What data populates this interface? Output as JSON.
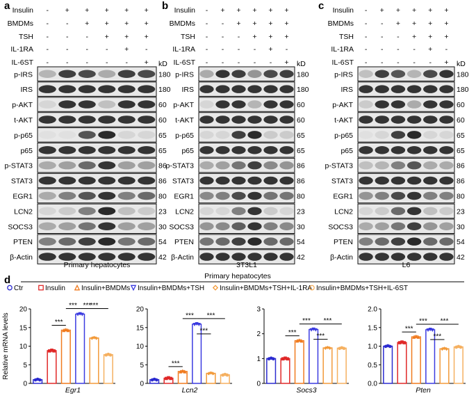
{
  "panels": [
    {
      "letter": "a",
      "caption": "Primary hepatocytes",
      "conditions": [
        {
          "label": "Insulin",
          "signs": [
            "-",
            "+",
            "+",
            "+",
            "+",
            "+"
          ]
        },
        {
          "label": "BMDMs",
          "signs": [
            "-",
            "-",
            "+",
            "+",
            "+",
            "+"
          ]
        },
        {
          "label": "TSH",
          "signs": [
            "-",
            "-",
            "-",
            "+",
            "+",
            "+"
          ]
        },
        {
          "label": "IL-1RA",
          "signs": [
            "-",
            "-",
            "-",
            "-",
            "+",
            "-"
          ]
        },
        {
          "label": "IL-6ST",
          "signs": [
            "-",
            "-",
            "-",
            "-",
            "-",
            "+"
          ]
        }
      ],
      "kd_label": "kD",
      "blots": [
        {
          "label": "p-IRS",
          "kd": "180",
          "intensity": [
            0.25,
            0.8,
            0.75,
            0.3,
            0.8,
            0.75
          ]
        },
        {
          "label": "IRS",
          "kd": "180",
          "intensity": [
            0.85,
            0.85,
            0.85,
            0.85,
            0.85,
            0.85
          ]
        },
        {
          "label": "p-AKT",
          "kd": "60",
          "intensity": [
            0.1,
            0.85,
            0.85,
            0.2,
            0.85,
            0.85
          ]
        },
        {
          "label": "t-AKT",
          "kd": "60",
          "intensity": [
            0.85,
            0.85,
            0.85,
            0.85,
            0.85,
            0.85
          ]
        },
        {
          "label": "p-p65",
          "kd": "65",
          "intensity": [
            0.05,
            0.05,
            0.7,
            0.9,
            0.1,
            0.1
          ]
        },
        {
          "label": "p65",
          "kd": "65",
          "intensity": [
            0.85,
            0.85,
            0.85,
            0.85,
            0.85,
            0.85
          ]
        },
        {
          "label": "p-STAT3",
          "kd": "86",
          "intensity": [
            0.3,
            0.35,
            0.6,
            0.85,
            0.35,
            0.35
          ]
        },
        {
          "label": "STAT3",
          "kd": "86",
          "intensity": [
            0.85,
            0.85,
            0.85,
            0.85,
            0.85,
            0.85
          ]
        },
        {
          "label": "EGR1",
          "kd": "80",
          "intensity": [
            0.3,
            0.5,
            0.7,
            0.85,
            0.5,
            0.6
          ]
        },
        {
          "label": "LCN2",
          "kd": "23",
          "intensity": [
            0.1,
            0.15,
            0.5,
            0.9,
            0.2,
            0.15
          ]
        },
        {
          "label": "SOCS3",
          "kd": "30",
          "intensity": [
            0.3,
            0.35,
            0.55,
            0.85,
            0.35,
            0.35
          ]
        },
        {
          "label": "PTEN",
          "kd": "54",
          "intensity": [
            0.5,
            0.6,
            0.8,
            0.9,
            0.55,
            0.6
          ]
        },
        {
          "label": "β-Actin",
          "kd": "42",
          "intensity": [
            0.85,
            0.85,
            0.85,
            0.85,
            0.85,
            0.85
          ]
        }
      ]
    },
    {
      "letter": "b",
      "caption": "3T3L1",
      "conditions": [
        {
          "label": "Insulin",
          "signs": [
            "-",
            "+",
            "+",
            "+",
            "+",
            "+"
          ]
        },
        {
          "label": "BMDMs",
          "signs": [
            "-",
            "-",
            "+",
            "+",
            "+",
            "+"
          ]
        },
        {
          "label": "TSH",
          "signs": [
            "-",
            "-",
            "-",
            "+",
            "+",
            "+"
          ]
        },
        {
          "label": "IL-1RA",
          "signs": [
            "-",
            "-",
            "-",
            "-",
            "+",
            "-"
          ]
        },
        {
          "label": "IL-6ST",
          "signs": [
            "-",
            "-",
            "-",
            "-",
            "-",
            "+"
          ]
        }
      ],
      "kd_label": "kD",
      "blots": [
        {
          "label": "p-IRS",
          "kd": "180",
          "intensity": [
            0.3,
            0.85,
            0.8,
            0.4,
            0.75,
            0.8
          ]
        },
        {
          "label": "IRS",
          "kd": "180",
          "intensity": [
            0.85,
            0.85,
            0.85,
            0.85,
            0.85,
            0.85
          ]
        },
        {
          "label": "p-AKT",
          "kd": "60",
          "intensity": [
            0.1,
            0.85,
            0.85,
            0.25,
            0.85,
            0.85
          ]
        },
        {
          "label": "t-AKT",
          "kd": "60",
          "intensity": [
            0.85,
            0.85,
            0.85,
            0.85,
            0.85,
            0.85
          ]
        },
        {
          "label": "p-p65",
          "kd": "65",
          "intensity": [
            0.1,
            0.1,
            0.8,
            0.9,
            0.15,
            0.15
          ]
        },
        {
          "label": "p65",
          "kd": "65",
          "intensity": [
            0.85,
            0.85,
            0.85,
            0.85,
            0.85,
            0.85
          ]
        },
        {
          "label": "p-STAT3",
          "kd": "86",
          "intensity": [
            0.3,
            0.35,
            0.55,
            0.8,
            0.45,
            0.4
          ]
        },
        {
          "label": "STAT3",
          "kd": "86",
          "intensity": [
            0.85,
            0.85,
            0.85,
            0.85,
            0.85,
            0.85
          ]
        },
        {
          "label": "EGR1",
          "kd": "80",
          "intensity": [
            0.45,
            0.5,
            0.75,
            0.85,
            0.55,
            0.55
          ]
        },
        {
          "label": "LCN2",
          "kd": "23",
          "intensity": [
            0.1,
            0.1,
            0.5,
            0.85,
            0.15,
            0.1
          ]
        },
        {
          "label": "SOCS3",
          "kd": "30",
          "intensity": [
            0.4,
            0.45,
            0.65,
            0.85,
            0.5,
            0.45
          ]
        },
        {
          "label": "PTEN",
          "kd": "54",
          "intensity": [
            0.55,
            0.6,
            0.8,
            0.9,
            0.6,
            0.6
          ]
        },
        {
          "label": "β-Actin",
          "kd": "42",
          "intensity": [
            0.85,
            0.85,
            0.85,
            0.85,
            0.85,
            0.85
          ]
        }
      ]
    },
    {
      "letter": "c",
      "caption": "L6",
      "conditions": [
        {
          "label": "Insulin",
          "signs": [
            "-",
            "+",
            "+",
            "+",
            "+",
            "+"
          ]
        },
        {
          "label": "BMDMs",
          "signs": [
            "-",
            "-",
            "+",
            "+",
            "+",
            "+"
          ]
        },
        {
          "label": "TSH",
          "signs": [
            "-",
            "-",
            "-",
            "+",
            "+",
            "+"
          ]
        },
        {
          "label": "IL-1RA",
          "signs": [
            "-",
            "-",
            "-",
            "-",
            "+",
            "-"
          ]
        },
        {
          "label": "IL-6ST",
          "signs": [
            "-",
            "-",
            "-",
            "-",
            "-",
            "+"
          ]
        }
      ],
      "kd_label": "kD",
      "blots": [
        {
          "label": "p-IRS",
          "kd": "180",
          "intensity": [
            0.2,
            0.8,
            0.7,
            0.25,
            0.75,
            0.85
          ]
        },
        {
          "label": "IRS",
          "kd": "180",
          "intensity": [
            0.85,
            0.85,
            0.85,
            0.85,
            0.85,
            0.85
          ]
        },
        {
          "label": "p-AKT",
          "kd": "60",
          "intensity": [
            0.15,
            0.85,
            0.85,
            0.3,
            0.85,
            0.85
          ]
        },
        {
          "label": "t-AKT",
          "kd": "60",
          "intensity": [
            0.85,
            0.85,
            0.85,
            0.85,
            0.85,
            0.85
          ]
        },
        {
          "label": "p-p65",
          "kd": "65",
          "intensity": [
            0.05,
            0.1,
            0.8,
            0.9,
            0.1,
            0.1
          ]
        },
        {
          "label": "p65",
          "kd": "65",
          "intensity": [
            0.85,
            0.85,
            0.85,
            0.85,
            0.85,
            0.85
          ]
        },
        {
          "label": "p-STAT3",
          "kd": "86",
          "intensity": [
            0.2,
            0.25,
            0.5,
            0.7,
            0.3,
            0.3
          ]
        },
        {
          "label": "STAT3",
          "kd": "86",
          "intensity": [
            0.85,
            0.85,
            0.85,
            0.85,
            0.85,
            0.85
          ]
        },
        {
          "label": "EGR1",
          "kd": "80",
          "intensity": [
            0.4,
            0.5,
            0.75,
            0.85,
            0.5,
            0.5
          ]
        },
        {
          "label": "LCN2",
          "kd": "23",
          "intensity": [
            0.1,
            0.15,
            0.6,
            0.85,
            0.2,
            0.15
          ]
        },
        {
          "label": "SOCS3",
          "kd": "30",
          "intensity": [
            0.3,
            0.35,
            0.55,
            0.8,
            0.4,
            0.35
          ]
        },
        {
          "label": "PTEN",
          "kd": "54",
          "intensity": [
            0.5,
            0.6,
            0.8,
            0.9,
            0.6,
            0.6
          ]
        },
        {
          "label": "β-Actin",
          "kd": "42",
          "intensity": [
            0.85,
            0.85,
            0.85,
            0.85,
            0.85,
            0.85
          ]
        }
      ]
    }
  ],
  "panel_d": {
    "letter": "d",
    "header": "Primary hepatocytes",
    "legend": [
      {
        "name": "Ctr",
        "marker": "circle",
        "color": "#2b2bd0"
      },
      {
        "name": "Insulin",
        "marker": "square",
        "color": "#e02828"
      },
      {
        "name": "Insulin+BMDMs",
        "marker": "triangle",
        "color": "#f07a1e"
      },
      {
        "name": "Insulin+BMDMs+TSH",
        "marker": "triangle-down",
        "color": "#3b3be0"
      },
      {
        "name": "Insulin+BMDMs+TSH+IL-1RA",
        "marker": "diamond",
        "color": "#f29a3a"
      },
      {
        "name": "Insulin+BMDMs+TSH+IL-6ST",
        "marker": "circle",
        "color": "#f5b060"
      }
    ],
    "ylabel": "Relative mRNA levels",
    "significance_label": "***"
  },
  "chart_data": [
    {
      "type": "bar",
      "gene": "Egr1",
      "categories": [
        "Ctr",
        "Insulin",
        "Insulin+BMDMs",
        "Insulin+BMDMs+TSH",
        "Insulin+BMDMs+TSH+IL-1RA",
        "Insulin+BMDMs+TSH+IL-6ST"
      ],
      "values": [
        1.0,
        8.8,
        14.3,
        18.6,
        12.2,
        7.7
      ],
      "ylim": [
        0,
        20
      ],
      "yticks": [
        "0",
        "5",
        "10",
        "15",
        "20"
      ],
      "comparisons": [
        [
          1,
          2
        ],
        [
          2,
          3
        ],
        [
          3,
          4
        ],
        [
          3,
          5
        ]
      ]
    },
    {
      "type": "bar",
      "gene": "Lcn2",
      "categories": [
        "Ctr",
        "Insulin",
        "Insulin+BMDMs",
        "Insulin+BMDMs+TSH",
        "Insulin+BMDMs+TSH+IL-1RA",
        "Insulin+BMDMs+TSH+IL-6ST"
      ],
      "values": [
        1.0,
        1.4,
        3.2,
        15.9,
        2.7,
        2.3
      ],
      "ylim": [
        0,
        20
      ],
      "yticks": [
        "0",
        "5",
        "10",
        "15",
        "20"
      ],
      "comparisons": [
        [
          1,
          2
        ],
        [
          2,
          3
        ],
        [
          3,
          4
        ],
        [
          3,
          5
        ]
      ]
    },
    {
      "type": "bar",
      "gene": "Socs3",
      "categories": [
        "Ctr",
        "Insulin",
        "Insulin+BMDMs",
        "Insulin+BMDMs+TSH",
        "Insulin+BMDMs+TSH+IL-1RA",
        "Insulin+BMDMs+TSH+IL-6ST"
      ],
      "values": [
        1.0,
        1.0,
        1.72,
        2.17,
        1.43,
        1.42
      ],
      "ylim": [
        0,
        3
      ],
      "yticks": [
        "0",
        "1",
        "2",
        "3"
      ],
      "comparisons": [
        [
          1,
          2
        ],
        [
          2,
          3
        ],
        [
          3,
          4
        ],
        [
          3,
          5
        ]
      ]
    },
    {
      "type": "bar",
      "gene": "Pten",
      "categories": [
        "Ctr",
        "Insulin",
        "Insulin+BMDMs",
        "Insulin+BMDMs+TSH",
        "Insulin+BMDMs+TSH+IL-1RA",
        "Insulin+BMDMs+TSH+IL-6ST"
      ],
      "values": [
        1.0,
        1.1,
        1.25,
        1.44,
        0.93,
        0.98
      ],
      "ylim": [
        0,
        2.0
      ],
      "yticks": [
        "0.0",
        "0.5",
        "1.0",
        "1.5",
        "2.0"
      ],
      "comparisons": [
        [
          1,
          2
        ],
        [
          2,
          3
        ],
        [
          3,
          4
        ],
        [
          3,
          5
        ]
      ]
    }
  ]
}
